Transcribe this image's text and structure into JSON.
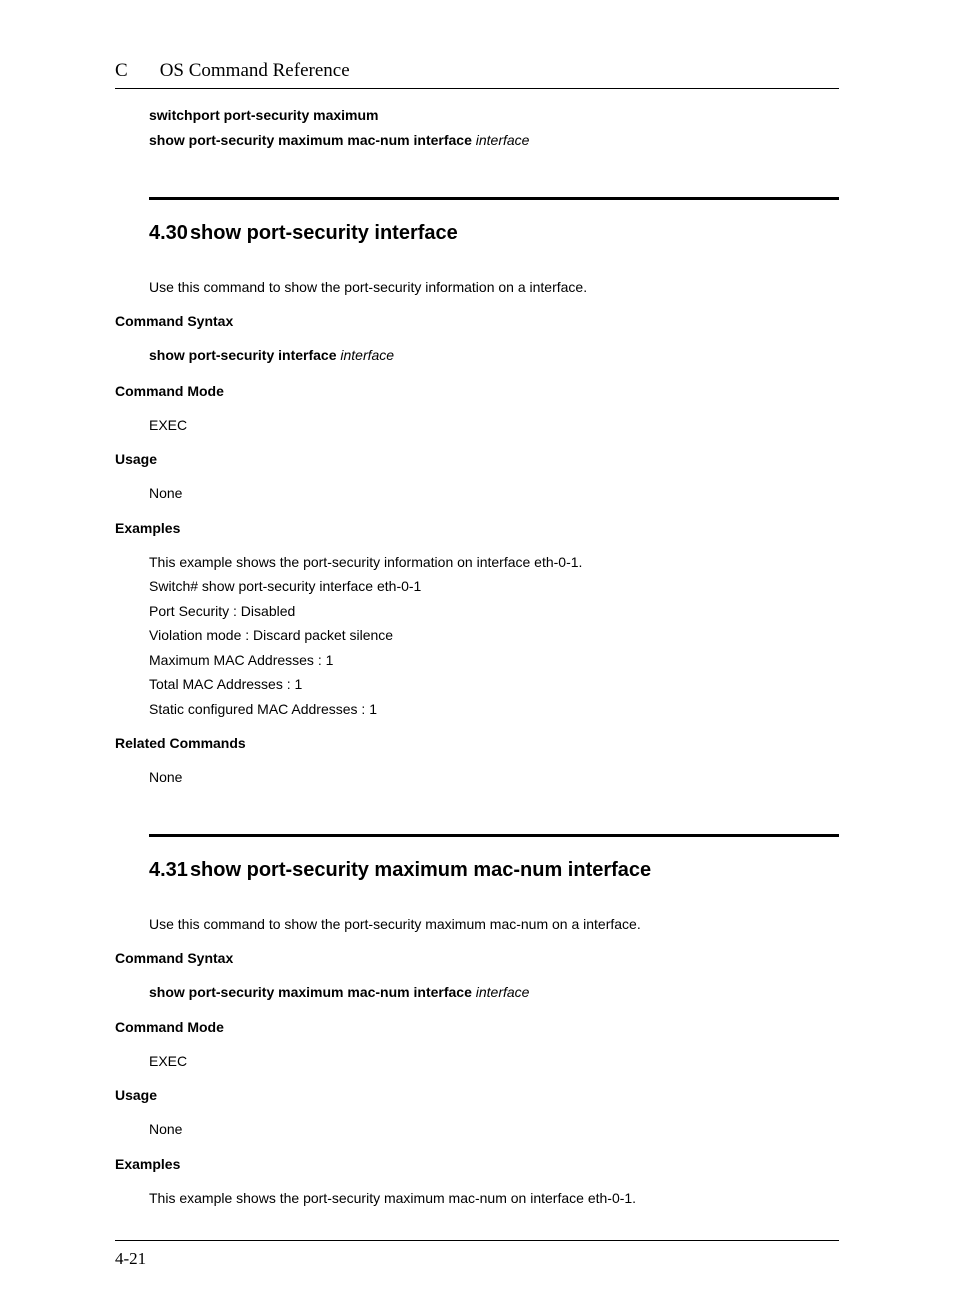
{
  "header": {
    "left": "C",
    "title": "OS Command Reference"
  },
  "preamble": {
    "line1_bold": "switchport port-security maximum",
    "line2_bold": "show port-security maximum mac-num interface ",
    "line2_italic": "interface"
  },
  "section430": {
    "number": "4.30",
    "title": "show port-security interface",
    "description": "Use this command to show the port-security information on a interface.",
    "syntax_label": "Command Syntax",
    "syntax_bold": "show port-security interface ",
    "syntax_italic": "interface",
    "mode_label": "Command Mode",
    "mode_value": "EXEC",
    "usage_label": "Usage",
    "usage_value": "None",
    "examples_label": "Examples",
    "examples_lines": [
      "This example shows the port-security information on interface eth-0-1.",
      "Switch# show port-security interface eth-0-1",
      "Port Security : Disabled",
      "Violation mode : Discard packet silence",
      "Maximum MAC Addresses : 1",
      "Total MAC Addresses : 1",
      "Static configured MAC Addresses : 1"
    ],
    "related_label": "Related Commands",
    "related_value": "None"
  },
  "section431": {
    "number": "4.31",
    "title": "show port-security maximum mac-num interface",
    "description": "Use this command to show the port-security maximum mac-num on a interface.",
    "syntax_label": "Command Syntax",
    "syntax_bold": "show port-security maximum mac-num interface ",
    "syntax_italic": "interface",
    "mode_label": "Command Mode",
    "mode_value": "EXEC",
    "usage_label": "Usage",
    "usage_value": "None",
    "examples_label": "Examples",
    "examples_line": "This example shows the port-security maximum mac-num on interface eth-0-1."
  },
  "footer": {
    "page": "4-21"
  }
}
